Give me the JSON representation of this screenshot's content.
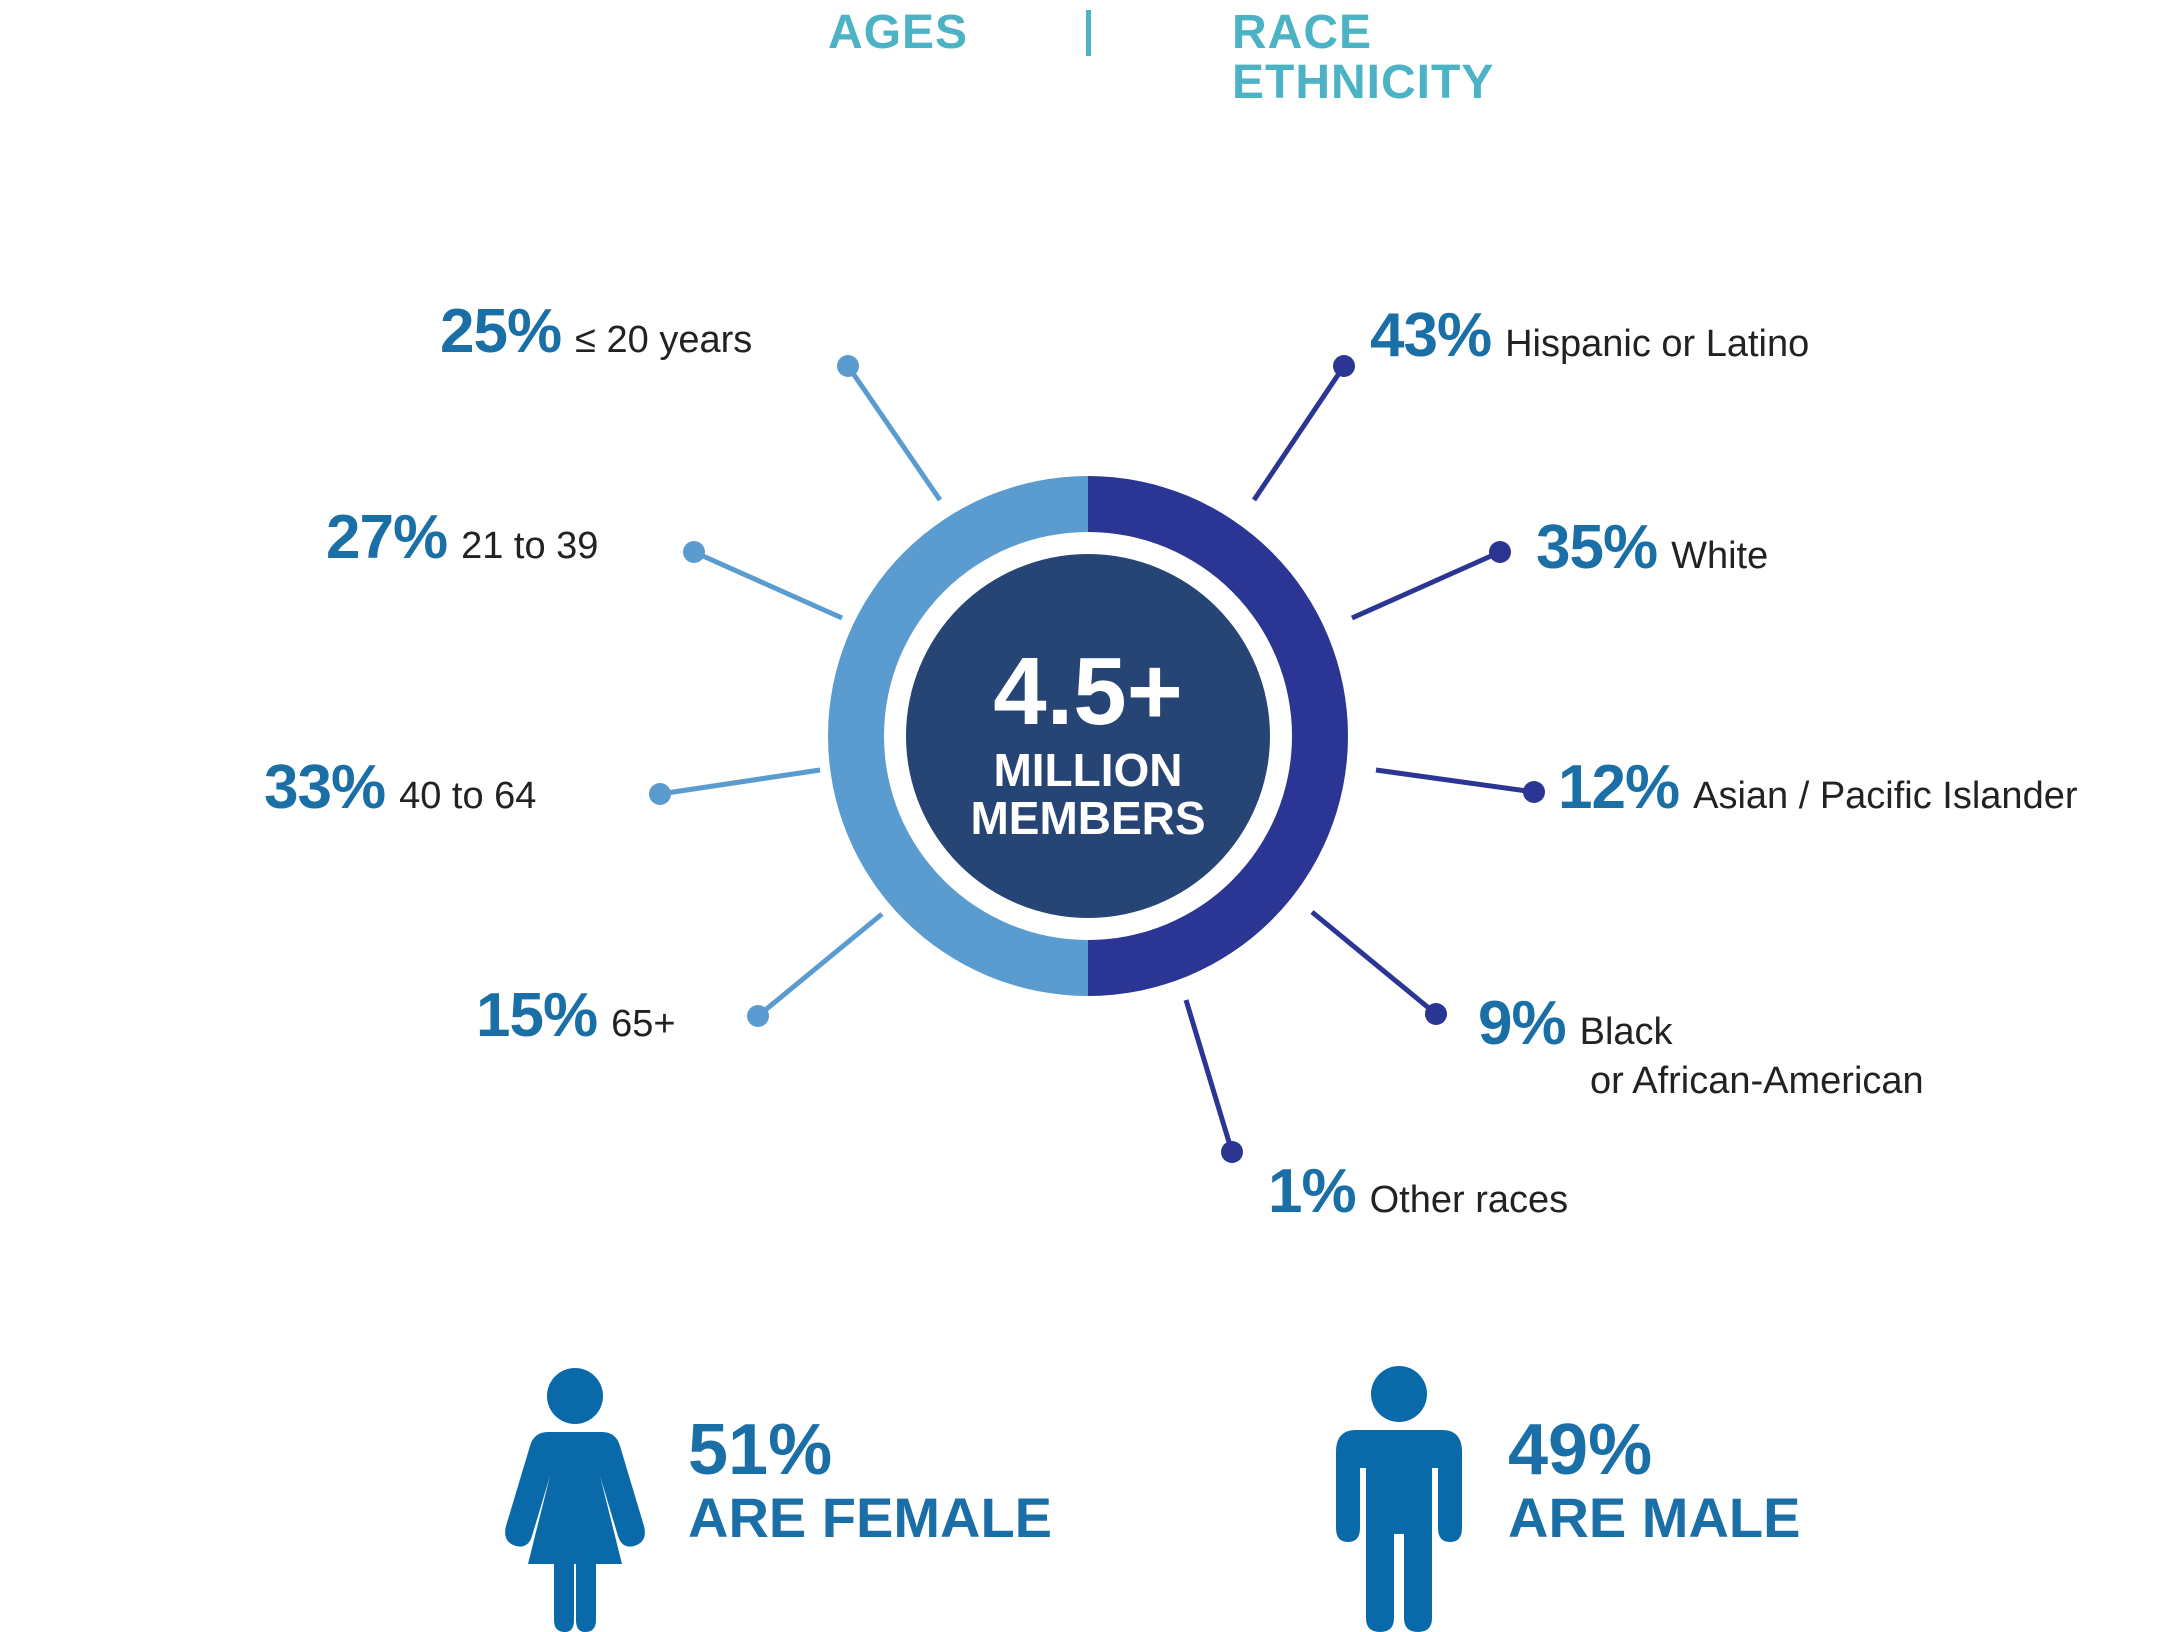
{
  "header": {
    "left": "AGES",
    "right_line1": "RACE",
    "right_line2": "ETHNICITY"
  },
  "center": {
    "value": "4.5+",
    "line1": "MILLION",
    "line2": "MEMBERS"
  },
  "ages": [
    {
      "percent": "25%",
      "label": "≤ 20 years",
      "value": 25
    },
    {
      "percent": "27%",
      "label": "21 to 39",
      "value": 27
    },
    {
      "percent": "33%",
      "label": "40 to 64",
      "value": 33
    },
    {
      "percent": "15%",
      "label": "65+",
      "value": 15
    }
  ],
  "race": [
    {
      "percent": "43%",
      "label": "Hispanic or Latino",
      "value": 43
    },
    {
      "percent": "35%",
      "label": "White",
      "value": 35
    },
    {
      "percent": "12%",
      "label": "Asian / Pacific Islander",
      "value": 12
    },
    {
      "percent": "9%",
      "label": "Black",
      "label2": "or African-American",
      "value": 9
    },
    {
      "percent": "1%",
      "label": "Other races",
      "value": 1
    }
  ],
  "gender": {
    "female": {
      "percent": "51%",
      "label": "ARE FEMALE",
      "icon": "female-person-icon"
    },
    "male": {
      "percent": "49%",
      "label": "ARE MALE",
      "icon": "male-person-icon"
    }
  },
  "colors": {
    "teal": "#4cb3c4",
    "pct_blue": "#1a6fa6",
    "ages_ring": "#5a9bd0",
    "race_ring": "#2b3593",
    "center": "#264574",
    "person": "#0a69a8"
  }
}
